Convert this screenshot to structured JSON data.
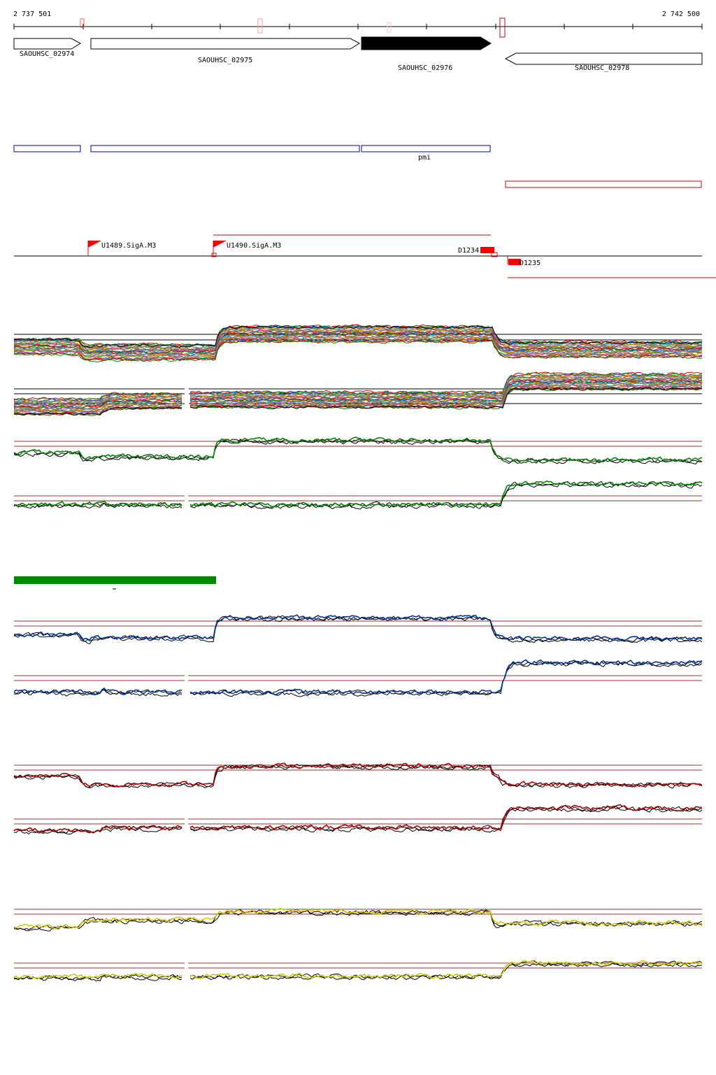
{
  "coords": {
    "start": "2 737 501",
    "end": "2 742 500"
  },
  "genes": [
    {
      "label": "SAOUHSC_02974",
      "strand": "+",
      "fill": "#ffffff"
    },
    {
      "label": "SAOUHSC_02975",
      "strand": "+",
      "fill": "#ffffff"
    },
    {
      "label": "SAOUHSC_02976",
      "strand": "+",
      "fill": "#000000"
    },
    {
      "label": "SAOUHSC_02978",
      "strand": "-",
      "fill": "#ffffff"
    }
  ],
  "annotation_label": "pmi",
  "promoters": [
    {
      "label": "U1489.SigA.M3",
      "color": "#ff0000"
    },
    {
      "label": "U1490.SigA.M3",
      "color": "#ff0000"
    }
  ],
  "terminators": [
    {
      "label": "D1234",
      "color": "#ff0000"
    },
    {
      "label": "D1235",
      "color": "#ff0000"
    }
  ],
  "colors": {
    "green": "#008800",
    "blue": "#003399",
    "red": "#aa0000",
    "yellow": "#cccc00",
    "guide": "#993333",
    "gene_outline": "#000000",
    "box_outline": "#000099",
    "condition_bar": "#008800"
  },
  "tracks": [
    {
      "name": "expression-heatlines-forward",
      "type": "multiline"
    },
    {
      "name": "expression-heatlines-reverse",
      "type": "multiline"
    },
    {
      "name": "green-forward",
      "color": "green"
    },
    {
      "name": "green-reverse",
      "color": "green"
    },
    {
      "name": "blue-forward",
      "color": "blue"
    },
    {
      "name": "blue-reverse",
      "color": "blue"
    },
    {
      "name": "red-forward",
      "color": "red"
    },
    {
      "name": "red-reverse",
      "color": "red"
    },
    {
      "name": "yellow-forward",
      "color": "yellow"
    },
    {
      "name": "yellow-reverse",
      "color": "yellow"
    }
  ]
}
